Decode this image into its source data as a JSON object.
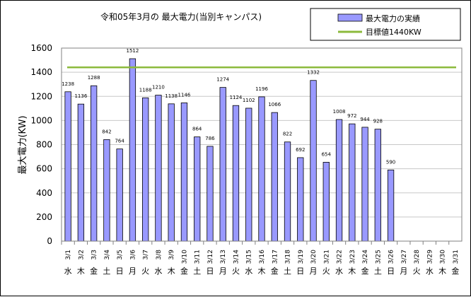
{
  "chart_data": {
    "type": "bar",
    "title": "令和05年3月の 最大電力(当別キャンパス)",
    "ylabel": "最大電力(KW)",
    "ylim": [
      0,
      1600
    ],
    "yticks": [
      0,
      200,
      400,
      600,
      800,
      1000,
      1200,
      1400,
      1600
    ],
    "grid": true,
    "legend_position": "top-right",
    "categories": [
      "3/1",
      "3/2",
      "3/3",
      "3/4",
      "3/5",
      "3/6",
      "3/7",
      "3/8",
      "3/9",
      "3/10",
      "3/11",
      "3/12",
      "3/13",
      "3/14",
      "3/15",
      "3/16",
      "3/17",
      "3/18",
      "3/19",
      "3/20",
      "3/21",
      "3/22",
      "3/23",
      "3/24",
      "3/25",
      "3/26",
      "3/27",
      "3/28",
      "3/29",
      "3/30",
      "3/31"
    ],
    "weekdays": [
      "水",
      "木",
      "金",
      "土",
      "日",
      "月",
      "火",
      "水",
      "木",
      "金",
      "土",
      "日",
      "月",
      "火",
      "水",
      "木",
      "金",
      "土",
      "日",
      "月",
      "火",
      "水",
      "木",
      "金",
      "土",
      "日",
      "月",
      "火",
      "水",
      "木",
      "金"
    ],
    "series": [
      {
        "name": "最大電力の実績",
        "color": "#9999ff",
        "values": [
          1238,
          1136,
          1288,
          842,
          764,
          1512,
          1188,
          1210,
          1138,
          1146,
          864,
          786,
          1274,
          1124,
          1102,
          1196,
          1066,
          822,
          692,
          1332,
          654,
          1008,
          972,
          944,
          928,
          590,
          null,
          null,
          null,
          null,
          null
        ],
        "labels": [
          "1238",
          "1136",
          "1288",
          "842",
          "764",
          "1512",
          "1188",
          "1210",
          "1138",
          "1146",
          "864",
          "786",
          "1274",
          "1124",
          "1102",
          "1196",
          "1066",
          "822",
          "692",
          "1332",
          "654",
          "1008",
          "972",
          "944",
          "928",
          "590",
          "",
          "",
          "",
          "",
          ""
        ]
      },
      {
        "name": "目標値1440KW",
        "color": "#8cba3c",
        "type": "line",
        "value": 1440
      }
    ]
  }
}
